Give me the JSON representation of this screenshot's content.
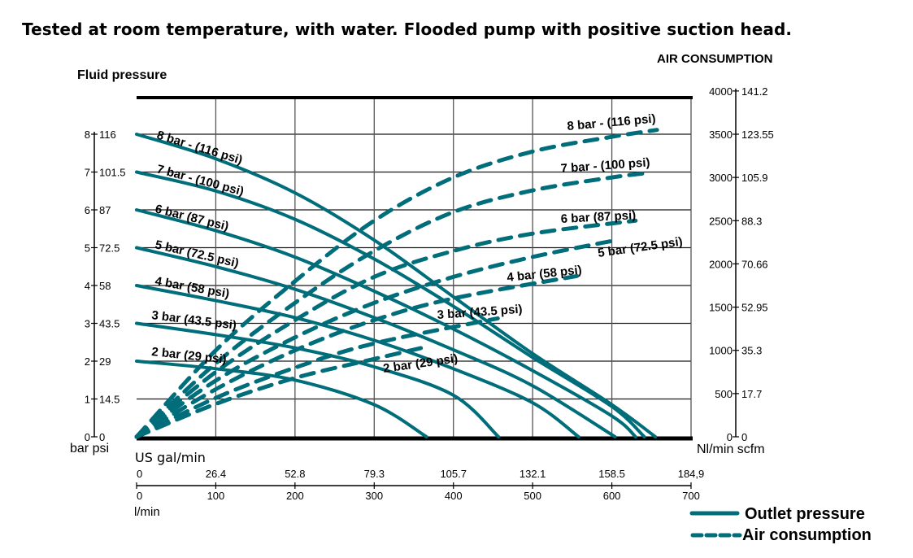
{
  "title": "Tested at room temperature, with water. Flooded pump with positive suction head.",
  "chart_data": {
    "type": "line",
    "left_axis": {
      "title": "Fluid pressure",
      "unit_label": "bar psi",
      "range_bar": [
        0,
        9
      ],
      "ticks": [
        {
          "bar": 0,
          "bar_label": "0",
          "psi_label": "0"
        },
        {
          "bar": 1,
          "bar_label": "1",
          "psi_label": "14.5"
        },
        {
          "bar": 2,
          "bar_label": "2",
          "psi_label": "29"
        },
        {
          "bar": 3,
          "bar_label": "3",
          "psi_label": "43.5"
        },
        {
          "bar": 4,
          "bar_label": "4",
          "psi_label": "58"
        },
        {
          "bar": 5,
          "bar_label": "5",
          "psi_label": "72.5"
        },
        {
          "bar": 6,
          "bar_label": "6",
          "psi_label": "87"
        },
        {
          "bar": 7,
          "bar_label": "7",
          "psi_label": "101.5"
        },
        {
          "bar": 8,
          "bar_label": "8",
          "psi_label": "116"
        }
      ]
    },
    "right_axis": {
      "title": "AIR CONSUMPTION",
      "unit_label": "Nl/min scfm",
      "range_nlmin": [
        0,
        4000
      ],
      "ticks": [
        {
          "nlmin": 0,
          "nl_label": "0",
          "scfm_label": "0"
        },
        {
          "nlmin": 500,
          "nl_label": "500",
          "scfm_label": "17.7"
        },
        {
          "nlmin": 1000,
          "nl_label": "1000",
          "scfm_label": "35.3"
        },
        {
          "nlmin": 1500,
          "nl_label": "1500",
          "scfm_label": "52.95"
        },
        {
          "nlmin": 2000,
          "nl_label": "2000",
          "scfm_label": "70.66"
        },
        {
          "nlmin": 2500,
          "nl_label": "2500",
          "scfm_label": "88.3"
        },
        {
          "nlmin": 3000,
          "nl_label": "3000",
          "scfm_label": "105.9"
        },
        {
          "nlmin": 3500,
          "nl_label": "3500",
          "scfm_label": "123.55"
        },
        {
          "nlmin": 4000,
          "nl_label": "4000",
          "scfm_label": "141.2"
        }
      ]
    },
    "x_axis": {
      "top_label": "US gal/min",
      "bottom_label": "l/min",
      "range_lmin": [
        0,
        700
      ],
      "ticks": [
        {
          "lmin": 0,
          "gal_label": "0",
          "l_label": "0"
        },
        {
          "lmin": 100,
          "gal_label": "26.4",
          "l_label": "100"
        },
        {
          "lmin": 200,
          "gal_label": "52.8",
          "l_label": "200"
        },
        {
          "lmin": 300,
          "gal_label": "79.3",
          "l_label": "300"
        },
        {
          "lmin": 400,
          "gal_label": "105.7",
          "l_label": "400"
        },
        {
          "lmin": 500,
          "gal_label": "132.1",
          "l_label": "500"
        },
        {
          "lmin": 600,
          "gal_label": "158.5",
          "l_label": "600"
        },
        {
          "lmin": 700,
          "gal_label": "184,9",
          "l_label": "700"
        }
      ]
    },
    "grid": true,
    "series_color": "#006d7a",
    "outlet_pressure": [
      {
        "name": "8 bar - (116 psi)",
        "points_lmin_bar": [
          [
            0,
            8
          ],
          [
            100,
            7.35
          ],
          [
            200,
            6.45
          ],
          [
            300,
            5.2
          ],
          [
            400,
            3.7
          ],
          [
            500,
            2.2
          ],
          [
            600,
            0.85
          ],
          [
            655,
            0
          ]
        ]
      },
      {
        "name": "7 bar - (100 psi)",
        "points_lmin_bar": [
          [
            0,
            7
          ],
          [
            100,
            6.5
          ],
          [
            200,
            5.75
          ],
          [
            300,
            4.7
          ],
          [
            400,
            3.45
          ],
          [
            500,
            2.1
          ],
          [
            600,
            0.8
          ],
          [
            641,
            0
          ]
        ]
      },
      {
        "name": "6 bar (87 psi)",
        "points_lmin_bar": [
          [
            0,
            6
          ],
          [
            100,
            5.45
          ],
          [
            200,
            4.75
          ],
          [
            300,
            3.85
          ],
          [
            400,
            2.85
          ],
          [
            500,
            1.75
          ],
          [
            600,
            0.55
          ],
          [
            630,
            0
          ]
        ]
      },
      {
        "name": "5 bar (72.5 psi)",
        "points_lmin_bar": [
          [
            0,
            5
          ],
          [
            100,
            4.5
          ],
          [
            200,
            3.9
          ],
          [
            300,
            3.15
          ],
          [
            400,
            2.3
          ],
          [
            500,
            1.35
          ],
          [
            604,
            0
          ]
        ]
      },
      {
        "name": "4 bar (58 psi)",
        "points_lmin_bar": [
          [
            0,
            4
          ],
          [
            100,
            3.6
          ],
          [
            200,
            3.15
          ],
          [
            300,
            2.55
          ],
          [
            400,
            1.8
          ],
          [
            500,
            0.9
          ],
          [
            558,
            0
          ]
        ]
      },
      {
        "name": "3 bar (43.5 psi)",
        "points_lmin_bar": [
          [
            0,
            3
          ],
          [
            100,
            2.7
          ],
          [
            200,
            2.35
          ],
          [
            300,
            1.85
          ],
          [
            400,
            1.1
          ],
          [
            457,
            0
          ]
        ]
      },
      {
        "name": "2 bar (29 psi)",
        "points_lmin_bar": [
          [
            0,
            2
          ],
          [
            100,
            1.8
          ],
          [
            200,
            1.5
          ],
          [
            300,
            0.85
          ],
          [
            366,
            0
          ]
        ]
      }
    ],
    "air_consumption": [
      {
        "name": "8 bar - (116 psi)",
        "points_lmin_nlmin": [
          [
            0,
            0
          ],
          [
            100,
            1000
          ],
          [
            200,
            1800
          ],
          [
            300,
            2500
          ],
          [
            400,
            3000
          ],
          [
            500,
            3300
          ],
          [
            600,
            3470
          ],
          [
            657,
            3550
          ]
        ]
      },
      {
        "name": "7 bar - (100 psi)",
        "points_lmin_nlmin": [
          [
            0,
            0
          ],
          [
            100,
            850
          ],
          [
            200,
            1550
          ],
          [
            300,
            2150
          ],
          [
            400,
            2600
          ],
          [
            500,
            2850
          ],
          [
            600,
            3000
          ],
          [
            644,
            3050
          ]
        ]
      },
      {
        "name": "6 bar (87 psi)",
        "points_lmin_nlmin": [
          [
            0,
            0
          ],
          [
            100,
            750
          ],
          [
            200,
            1350
          ],
          [
            300,
            1850
          ],
          [
            400,
            2150
          ],
          [
            500,
            2350
          ],
          [
            630,
            2500
          ]
        ]
      },
      {
        "name": "5 bar (72.5 psi)",
        "points_lmin_nlmin": [
          [
            0,
            0
          ],
          [
            100,
            650
          ],
          [
            200,
            1150
          ],
          [
            300,
            1550
          ],
          [
            400,
            1850
          ],
          [
            500,
            2080
          ],
          [
            608,
            2280
          ]
        ]
      },
      {
        "name": "4 bar (58 psi)",
        "points_lmin_nlmin": [
          [
            0,
            0
          ],
          [
            100,
            550
          ],
          [
            200,
            1000
          ],
          [
            300,
            1350
          ],
          [
            400,
            1600
          ],
          [
            556,
            1860
          ]
        ]
      },
      {
        "name": "3 bar (43.5 psi)",
        "points_lmin_nlmin": [
          [
            0,
            0
          ],
          [
            100,
            450
          ],
          [
            200,
            800
          ],
          [
            300,
            1080
          ],
          [
            456,
            1370
          ]
        ]
      },
      {
        "name": "2 bar (29 psi)",
        "points_lmin_nlmin": [
          [
            0,
            0
          ],
          [
            100,
            380
          ],
          [
            200,
            680
          ],
          [
            300,
            900
          ],
          [
            361,
            1030
          ]
        ]
      }
    ],
    "legend": [
      {
        "label": "Outlet pressure",
        "style": "solid"
      },
      {
        "label": "Air consumption",
        "style": "dashed"
      }
    ],
    "legend_position": "bottom-right"
  }
}
